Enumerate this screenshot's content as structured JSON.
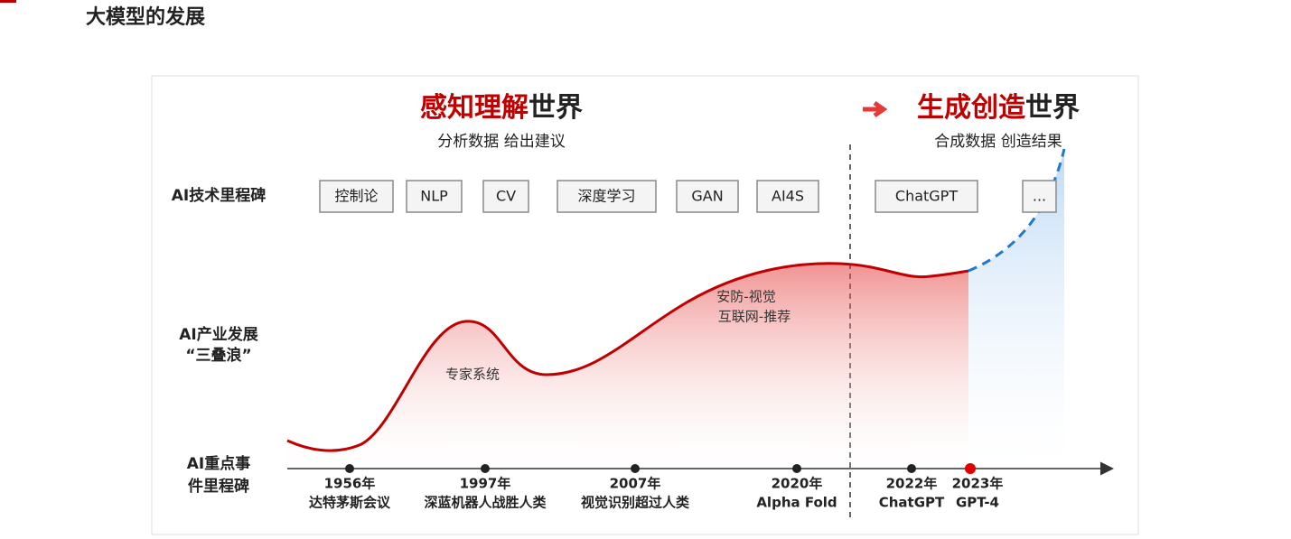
{
  "header": {
    "title": "大模型的发展"
  },
  "left_heading": {
    "highlight": "感知理解",
    "rest": "世界",
    "subtitle": "分析数据 给出建议"
  },
  "right_heading": {
    "highlight": "生成创造",
    "rest": "世界",
    "subtitle": "合成数据 创造结果"
  },
  "row_labels": [
    [
      "AI技术里程碑"
    ],
    [
      "AI产业发展",
      "“三叠浪”"
    ],
    [
      "AI重点事",
      "件里程碑"
    ]
  ],
  "milestones": [
    "控制论",
    "NLP",
    "CV",
    "深度学习",
    "GAN",
    "AI4S",
    "ChatGPT",
    "..."
  ],
  "wave_labels": [
    [
      "专家系统"
    ],
    [
      "安防-视觉",
      "互联网-推荐"
    ]
  ],
  "events": [
    {
      "year": "1956年",
      "label": "达特茅斯会议"
    },
    {
      "year": "1997年",
      "label": "深蓝机器人战胜人类"
    },
    {
      "year": "2007年",
      "label": "视觉识别超过人类"
    },
    {
      "year": "2020年",
      "label": "Alpha Fold"
    },
    {
      "year": "2022年",
      "label": "ChatGPT"
    },
    {
      "year": "2023年",
      "label": "GPT-4"
    }
  ]
}
